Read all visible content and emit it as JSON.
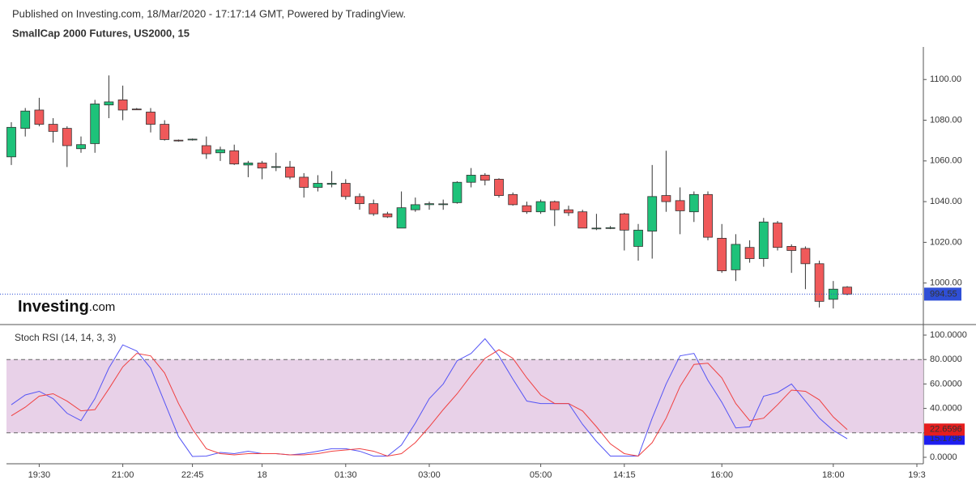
{
  "header": {
    "published": "Published on Investing.com, 18/Mar/2020 - 17:17:14 GMT, Powered by TradingView."
  },
  "logo": {
    "name": "Investing",
    "suffix": ".com"
  },
  "chart_data": [
    {
      "type": "candlestick",
      "title": "SmallCap 2000 Futures, US2000, 15",
      "up_color": "#1ec27a",
      "down_color": "#f0595a",
      "last_price_color": "#2f4fd6",
      "ylim": [
        980,
        1116
      ],
      "yticks": [
        {
          "value": 1000,
          "label": "1000.00"
        },
        {
          "value": 1020,
          "label": "1020.00"
        },
        {
          "value": 1040,
          "label": "1040.00"
        },
        {
          "value": 1060,
          "label": "1060.00"
        },
        {
          "value": 1080,
          "label": "1080.00"
        },
        {
          "value": 1100,
          "label": "1100.00"
        }
      ],
      "open": [
        1062,
        1076,
        1085,
        1078,
        1076,
        1066,
        1068.5,
        1087.5,
        1090,
        1085.5,
        1084,
        1078,
        1070.2,
        1070.5,
        1067.5,
        1064,
        1065,
        1058,
        1059,
        1057,
        1057,
        1052,
        1047,
        1048.5,
        1049,
        1042.5,
        1039,
        1034,
        1027,
        1036,
        1038.5,
        1038.7,
        1039.5,
        1049.5,
        1053,
        1051,
        1043.5,
        1038,
        1035,
        1040,
        1036,
        1035,
        1027,
        1027,
        1034,
        1018,
        1025.5,
        1043,
        1040.5,
        1035,
        1043.5,
        1022,
        1006.5,
        1017.5,
        1012,
        1029.5,
        1018,
        1017,
        1009.5,
        992,
        998,
        null,
        null,
        null,
        null,
        null
      ],
      "high": [
        1079,
        1086,
        1091,
        1081,
        1077,
        1072,
        1090,
        1102,
        1097,
        1086,
        1086,
        1080,
        1070.5,
        1071,
        1072,
        1067,
        1068,
        1060,
        1060,
        1064,
        1060,
        1054,
        1053,
        1055,
        1051,
        1044,
        1041,
        1035,
        1045,
        1042,
        1040,
        1041,
        1050,
        1056.5,
        1054,
        1051.5,
        1044.5,
        1040,
        1041,
        1040.5,
        1038,
        1036,
        1034,
        1028,
        1034.5,
        1029,
        1058,
        1065,
        1047,
        1045,
        1045,
        1029,
        1024,
        1021,
        1032,
        1030.5,
        1019,
        1018,
        1011,
        1001,
        998.5,
        null,
        null,
        null,
        null,
        null
      ],
      "low": [
        1058,
        1072,
        1077,
        1069,
        1057,
        1064,
        1064,
        1081,
        1080,
        1085,
        1074,
        1070,
        1069.5,
        1070,
        1061,
        1060,
        1058,
        1052,
        1051,
        1055,
        1051,
        1042,
        1045,
        1047,
        1041,
        1036,
        1033,
        1032,
        1027,
        1035,
        1036,
        1036,
        1039,
        1047,
        1048,
        1042,
        1038,
        1034,
        1034,
        1028,
        1033,
        1027,
        1026,
        1026.5,
        1016,
        1011,
        1012,
        1035,
        1024,
        1030,
        1021,
        1005,
        1001,
        1010,
        1008,
        1016,
        1005,
        997,
        988,
        987.5,
        994,
        null,
        null,
        null,
        null,
        null
      ],
      "close": [
        1076.5,
        1084.5,
        1078,
        1074.5,
        1067.5,
        1068,
        1088,
        1089,
        1085,
        1085.3,
        1078,
        1070.5,
        1070,
        1070.7,
        1063.5,
        1065.5,
        1058.5,
        1059,
        1056.5,
        1057.2,
        1052,
        1047,
        1049,
        1049,
        1042.5,
        1039,
        1034,
        1032.5,
        1037,
        1038.5,
        1039,
        1038.9,
        1049.5,
        1053,
        1050.5,
        1043,
        1038.5,
        1035,
        1040,
        1036,
        1034.5,
        1027,
        1027,
        1027.2,
        1026,
        1026,
        1042.5,
        1040,
        1035.5,
        1043.5,
        1022.5,
        1006,
        1019,
        1012,
        1030,
        1017.5,
        1016,
        1009.5,
        991,
        997,
        994.55,
        null,
        null,
        null,
        null,
        null
      ]
    },
    {
      "type": "line",
      "title": "Stoch RSI (14, 14, 3, 3)",
      "categories": [
        null,
        null,
        "19:30",
        null,
        null,
        null,
        null,
        null,
        "21:00",
        null,
        null,
        null,
        null,
        "22:45",
        null,
        null,
        null,
        null,
        "18",
        null,
        null,
        null,
        null,
        null,
        "01:30",
        null,
        null,
        null,
        null,
        null,
        "03:00",
        null,
        null,
        null,
        null,
        null,
        null,
        null,
        "05:00",
        null,
        null,
        null,
        null,
        null,
        "14:15",
        null,
        null,
        null,
        null,
        null,
        null,
        "16:00",
        null,
        null,
        null,
        null,
        null,
        null,
        null,
        "18:00",
        null,
        null,
        null,
        null,
        null,
        "19:3"
      ],
      "ylim": [
        -5.3,
        107.3
      ],
      "yticks": [
        {
          "value": 0,
          "label": "0.0000"
        },
        {
          "value": 20,
          "label": "20.0000"
        },
        {
          "value": 40,
          "label": "40.0000"
        },
        {
          "value": 60,
          "label": "60.0000"
        },
        {
          "value": 80,
          "label": "80.0000"
        },
        {
          "value": 100,
          "label": "100.0000"
        }
      ],
      "bands": {
        "upper": 80,
        "lower": 20,
        "color": "#e6cce6"
      },
      "series": [
        {
          "color": "#5555f5",
          "label_color": "#1d1df0",
          "values": [
            43,
            51,
            54,
            48,
            36,
            30,
            48,
            73,
            92,
            87,
            73,
            45,
            17,
            0.7,
            1,
            4,
            3,
            5,
            3,
            3,
            2,
            3,
            5,
            7,
            7,
            5,
            1,
            1,
            10,
            28,
            48,
            60,
            79,
            85,
            97,
            83,
            64,
            46,
            44,
            44,
            44,
            27,
            13,
            1,
            1,
            1,
            32,
            60,
            83,
            85,
            63,
            45,
            24,
            25,
            50,
            53,
            60,
            46,
            32,
            22,
            15.1796,
            null,
            null,
            null,
            null,
            null
          ]
        },
        {
          "color": "#f04040",
          "label_color": "#e61e1e",
          "values": [
            34,
            41,
            50,
            52,
            46,
            38,
            39,
            56,
            74,
            85,
            83,
            69,
            44,
            23,
            7,
            3,
            2,
            3,
            3,
            3,
            2,
            2,
            3,
            5,
            6,
            7,
            5,
            1,
            3,
            12,
            25,
            39,
            52,
            67,
            81,
            88,
            81,
            65,
            51,
            44,
            44,
            38,
            25,
            11,
            3,
            1,
            12,
            32,
            58,
            76,
            77,
            65,
            44,
            30,
            32,
            43,
            55,
            54,
            47,
            33,
            22.6596,
            null,
            null,
            null,
            null,
            null
          ]
        }
      ]
    }
  ]
}
